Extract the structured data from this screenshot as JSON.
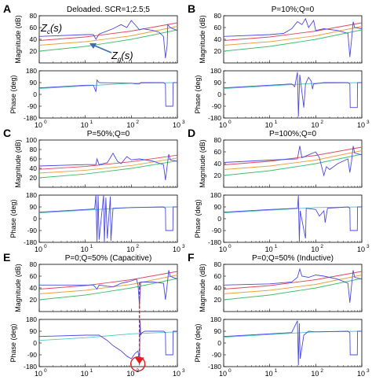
{
  "figure": {
    "xticks": [
      {
        "value": 1,
        "label": "10",
        "exp": "0"
      },
      {
        "value": 10,
        "label": "10",
        "exp": "1"
      },
      {
        "value": 100,
        "label": "10",
        "exp": "2"
      },
      {
        "value": 1000,
        "label": "10",
        "exp": "3"
      }
    ],
    "mag_ticks": [
      20,
      40,
      60,
      80
    ],
    "mag_ticks_extra": [
      100
    ],
    "phase_ticks": [
      180,
      90,
      0,
      -90,
      -180
    ],
    "mag_ylabel": "Magnitude (dB)",
    "phase_ylabel": "Phase (deg)",
    "colors": {
      "blue": "#4a4adf",
      "red": "#e0475c",
      "orange": "#e8a040",
      "green": "#3fbf6a",
      "cyan": "#50c8c8",
      "annot_red": "#e02020",
      "annot_arrow": "#3a6fb0"
    },
    "annotations": {
      "zc_label": "Z",
      "zc_sub": "c",
      "zc_arg": "(s)",
      "zg_label": "Z",
      "zg_sub": "g",
      "zg_arg": "(s)"
    }
  },
  "chart_data": [
    {
      "type": "line",
      "panel": "A",
      "title": "Deloaded. SCR=1;2.5;5",
      "xscale": "log",
      "xlim": [
        1,
        1000
      ],
      "magnitude": {
        "ylim": [
          0,
          80
        ],
        "series": [
          {
            "color": "blue",
            "x": [
              1,
              10,
              15,
              17,
              20,
              40,
              50,
              60,
              80,
              100,
              130,
              150,
              180,
              300,
              400,
              500,
              550,
              600,
              620,
              700,
              1000
            ],
            "y": [
              45,
              48,
              48,
              40,
              49,
              58,
              62,
              65,
              60,
              72,
              62,
              56,
              58,
              55,
              52,
              45,
              8,
              30,
              65,
              60,
              55
            ]
          },
          {
            "color": "red",
            "x": [
              1,
              10,
              100,
              1000
            ],
            "y": [
              38,
              44,
              54,
              68
            ]
          },
          {
            "color": "orange",
            "x": [
              1,
              10,
              100,
              1000
            ],
            "y": [
              30,
              36,
              46,
              62
            ]
          },
          {
            "color": "green",
            "x": [
              1,
              10,
              100,
              1000
            ],
            "y": [
              20,
              28,
              40,
              56
            ]
          }
        ]
      },
      "phase": {
        "ylim": [
          -180,
          180
        ],
        "series": [
          {
            "color": "blue",
            "x": [
              1,
              10,
              15,
              17,
              18,
              20,
              100,
              130,
              150,
              160,
              500,
              550,
              560,
              800,
              810,
              1000
            ],
            "y": [
              50,
              70,
              70,
              20,
              110,
              90,
              85,
              80,
              80,
              90,
              90,
              80,
              -90,
              -90,
              90,
              90
            ]
          },
          {
            "color": "cyan",
            "x": [
              1,
              10,
              100,
              1000
            ],
            "y": [
              45,
              65,
              85,
              90
            ]
          }
        ]
      }
    },
    {
      "type": "line",
      "panel": "B",
      "title": "P=10%;Q=0",
      "xscale": "log",
      "xlim": [
        1,
        1000
      ],
      "magnitude": {
        "ylim": [
          0,
          80
        ],
        "series": [
          {
            "color": "blue",
            "x": [
              1,
              10,
              20,
              30,
              40,
              50,
              60,
              70,
              90,
              100,
              150,
              300,
              500,
              550,
              600,
              650,
              700,
              1000
            ],
            "y": [
              45,
              48,
              50,
              58,
              70,
              65,
              75,
              60,
              72,
              55,
              58,
              55,
              50,
              10,
              40,
              70,
              60,
              58
            ]
          },
          {
            "color": "red",
            "x": [
              1,
              10,
              100,
              1000
            ],
            "y": [
              38,
              44,
              54,
              68
            ]
          },
          {
            "color": "orange",
            "x": [
              1,
              10,
              100,
              1000
            ],
            "y": [
              30,
              36,
              46,
              62
            ]
          },
          {
            "color": "green",
            "x": [
              1,
              10,
              100,
              1000
            ],
            "y": [
              20,
              28,
              40,
              56
            ]
          }
        ]
      },
      "phase": {
        "ylim": [
          -180,
          180
        ],
        "series": [
          {
            "color": "blue",
            "x": [
              1,
              10,
              30,
              35,
              40,
              42,
              45,
              55,
              60,
              70,
              80,
              85,
              90,
              150,
              500,
              550,
              560,
              800,
              810,
              1000
            ],
            "y": [
              50,
              70,
              80,
              60,
              170,
              -170,
              150,
              -100,
              80,
              130,
              100,
              40,
              80,
              90,
              90,
              80,
              -100,
              -100,
              90,
              90
            ]
          },
          {
            "color": "cyan",
            "x": [
              1,
              10,
              100,
              1000
            ],
            "y": [
              45,
              65,
              85,
              90
            ]
          }
        ]
      }
    },
    {
      "type": "line",
      "panel": "C",
      "title": "P=50%;Q=0",
      "xscale": "log",
      "xlim": [
        1,
        1000
      ],
      "magnitude": {
        "ylim": [
          0,
          100
        ],
        "series": [
          {
            "color": "blue",
            "x": [
              1,
              10,
              17,
              18,
              20,
              30,
              40,
              50,
              60,
              80,
              100,
              150,
              300,
              500,
              550,
              600,
              650,
              700,
              1000
            ],
            "y": [
              45,
              48,
              48,
              60,
              48,
              52,
              72,
              55,
              50,
              65,
              58,
              60,
              55,
              48,
              15,
              45,
              70,
              58,
              55
            ]
          },
          {
            "color": "red",
            "x": [
              1,
              10,
              100,
              1000
            ],
            "y": [
              38,
              44,
              54,
              68
            ]
          },
          {
            "color": "orange",
            "x": [
              1,
              10,
              100,
              1000
            ],
            "y": [
              30,
              36,
              46,
              62
            ]
          },
          {
            "color": "green",
            "x": [
              1,
              10,
              100,
              1000
            ],
            "y": [
              20,
              28,
              40,
              56
            ]
          }
        ]
      },
      "phase": {
        "ylim": [
          -180,
          180
        ],
        "series": [
          {
            "color": "blue",
            "x": [
              1,
              10,
              16,
              17,
              18,
              19,
              20,
              25,
              26,
              28,
              30,
              35,
              36,
              40,
              100,
              500,
              550,
              560,
              800,
              810,
              1000
            ],
            "y": [
              50,
              70,
              75,
              180,
              -180,
              180,
              -160,
              180,
              -180,
              160,
              -150,
              170,
              -170,
              80,
              85,
              90,
              80,
              -90,
              -90,
              90,
              90
            ]
          },
          {
            "color": "cyan",
            "x": [
              1,
              10,
              100,
              1000
            ],
            "y": [
              45,
              65,
              85,
              90
            ]
          }
        ]
      }
    },
    {
      "type": "line",
      "panel": "D",
      "title": "P=100%;Q=0",
      "xscale": "log",
      "xlim": [
        1,
        1000
      ],
      "magnitude": {
        "ylim": [
          0,
          80
        ],
        "series": [
          {
            "color": "blue",
            "x": [
              1,
              10,
              40,
              45,
              50,
              70,
              100,
              120,
              150,
              170,
              200,
              300,
              500,
              550,
              600,
              650,
              700,
              1000
            ],
            "y": [
              42,
              46,
              48,
              70,
              50,
              55,
              60,
              50,
              20,
              35,
              30,
              40,
              48,
              25,
              45,
              70,
              58,
              55
            ]
          },
          {
            "color": "red",
            "x": [
              1,
              10,
              100,
              1000
            ],
            "y": [
              38,
              44,
              54,
              68
            ]
          },
          {
            "color": "orange",
            "x": [
              1,
              10,
              100,
              1000
            ],
            "y": [
              30,
              36,
              46,
              62
            ]
          },
          {
            "color": "green",
            "x": [
              1,
              10,
              100,
              1000
            ],
            "y": [
              20,
              28,
              40,
              56
            ]
          }
        ]
      },
      "phase": {
        "ylim": [
          -180,
          180
        ],
        "series": [
          {
            "color": "blue",
            "x": [
              1,
              10,
              40,
              42,
              44,
              46,
              60,
              62,
              100,
              120,
              150,
              160,
              180,
              500,
              550,
              560,
              800,
              810,
              1000
            ],
            "y": [
              50,
              70,
              80,
              175,
              -175,
              60,
              -150,
              80,
              70,
              20,
              60,
              -30,
              80,
              90,
              80,
              -90,
              -90,
              90,
              90
            ]
          },
          {
            "color": "cyan",
            "x": [
              1,
              10,
              100,
              1000
            ],
            "y": [
              45,
              65,
              85,
              90
            ]
          }
        ]
      }
    },
    {
      "type": "line",
      "panel": "E",
      "title": "P=0;Q=50% (Capacitive)",
      "xscale": "log",
      "xlim": [
        1,
        1000
      ],
      "magnitude": {
        "ylim": [
          0,
          80
        ],
        "series": [
          {
            "color": "blue",
            "x": [
              1,
              10,
              15,
              18,
              20,
              30,
              40,
              50,
              60,
              80,
              100,
              130,
              140,
              150,
              160,
              300,
              500,
              550,
              600,
              650,
              700,
              1000
            ],
            "y": [
              45,
              45,
              45,
              38,
              45,
              43,
              42,
              45,
              48,
              50,
              52,
              55,
              45,
              10,
              50,
              50,
              48,
              20,
              45,
              70,
              60,
              55
            ]
          },
          {
            "color": "red",
            "x": [
              1,
              10,
              100,
              1000
            ],
            "y": [
              38,
              44,
              54,
              68
            ]
          },
          {
            "color": "orange",
            "x": [
              1,
              10,
              100,
              1000
            ],
            "y": [
              30,
              36,
              46,
              62
            ]
          },
          {
            "color": "green",
            "x": [
              1,
              10,
              100,
              1000
            ],
            "y": [
              20,
              28,
              40,
              56
            ]
          }
        ]
      },
      "phase": {
        "ylim": [
          -180,
          180
        ],
        "series": [
          {
            "color": "blue",
            "x": [
              1,
              10,
              20,
              30,
              40,
              60,
              80,
              100,
              120,
              140,
              150,
              155,
              160,
              170,
              200,
              300,
              500,
              550,
              560,
              800,
              810,
              1000
            ],
            "y": [
              50,
              60,
              60,
              20,
              -20,
              -60,
              -100,
              -120,
              -80,
              -60,
              -170,
              170,
              60,
              80,
              90,
              90,
              90,
              80,
              -90,
              -90,
              90,
              90
            ]
          },
          {
            "color": "cyan",
            "x": [
              1,
              10,
              100,
              1000
            ],
            "y": [
              20,
              40,
              70,
              85
            ]
          }
        ]
      }
    },
    {
      "type": "line",
      "panel": "F",
      "title": "P=0;Q=50% (Inductive)",
      "xscale": "log",
      "xlim": [
        1,
        1000
      ],
      "magnitude": {
        "ylim": [
          0,
          80
        ],
        "series": [
          {
            "color": "blue",
            "x": [
              1,
              10,
              30,
              40,
              45,
              50,
              70,
              100,
              150,
              300,
              500,
              550,
              600,
              650,
              700,
              1000
            ],
            "y": [
              45,
              47,
              50,
              58,
              72,
              60,
              58,
              62,
              60,
              55,
              48,
              15,
              45,
              70,
              58,
              55
            ]
          },
          {
            "color": "red",
            "x": [
              1,
              10,
              100,
              1000
            ],
            "y": [
              38,
              44,
              54,
              68
            ]
          },
          {
            "color": "orange",
            "x": [
              1,
              10,
              100,
              1000
            ],
            "y": [
              30,
              36,
              46,
              62
            ]
          },
          {
            "color": "green",
            "x": [
              1,
              10,
              100,
              1000
            ],
            "y": [
              20,
              28,
              40,
              56
            ]
          }
        ]
      },
      "phase": {
        "ylim": [
          -180,
          180
        ],
        "series": [
          {
            "color": "blue",
            "x": [
              1,
              10,
              30,
              40,
              42,
              44,
              46,
              55,
              70,
              100,
              500,
              550,
              560,
              800,
              810,
              1000
            ],
            "y": [
              50,
              70,
              80,
              170,
              -170,
              150,
              -120,
              60,
              90,
              85,
              90,
              80,
              -90,
              -90,
              90,
              90
            ]
          },
          {
            "color": "cyan",
            "x": [
              1,
              10,
              100,
              1000
            ],
            "y": [
              45,
              65,
              85,
              90
            ]
          }
        ]
      }
    }
  ]
}
